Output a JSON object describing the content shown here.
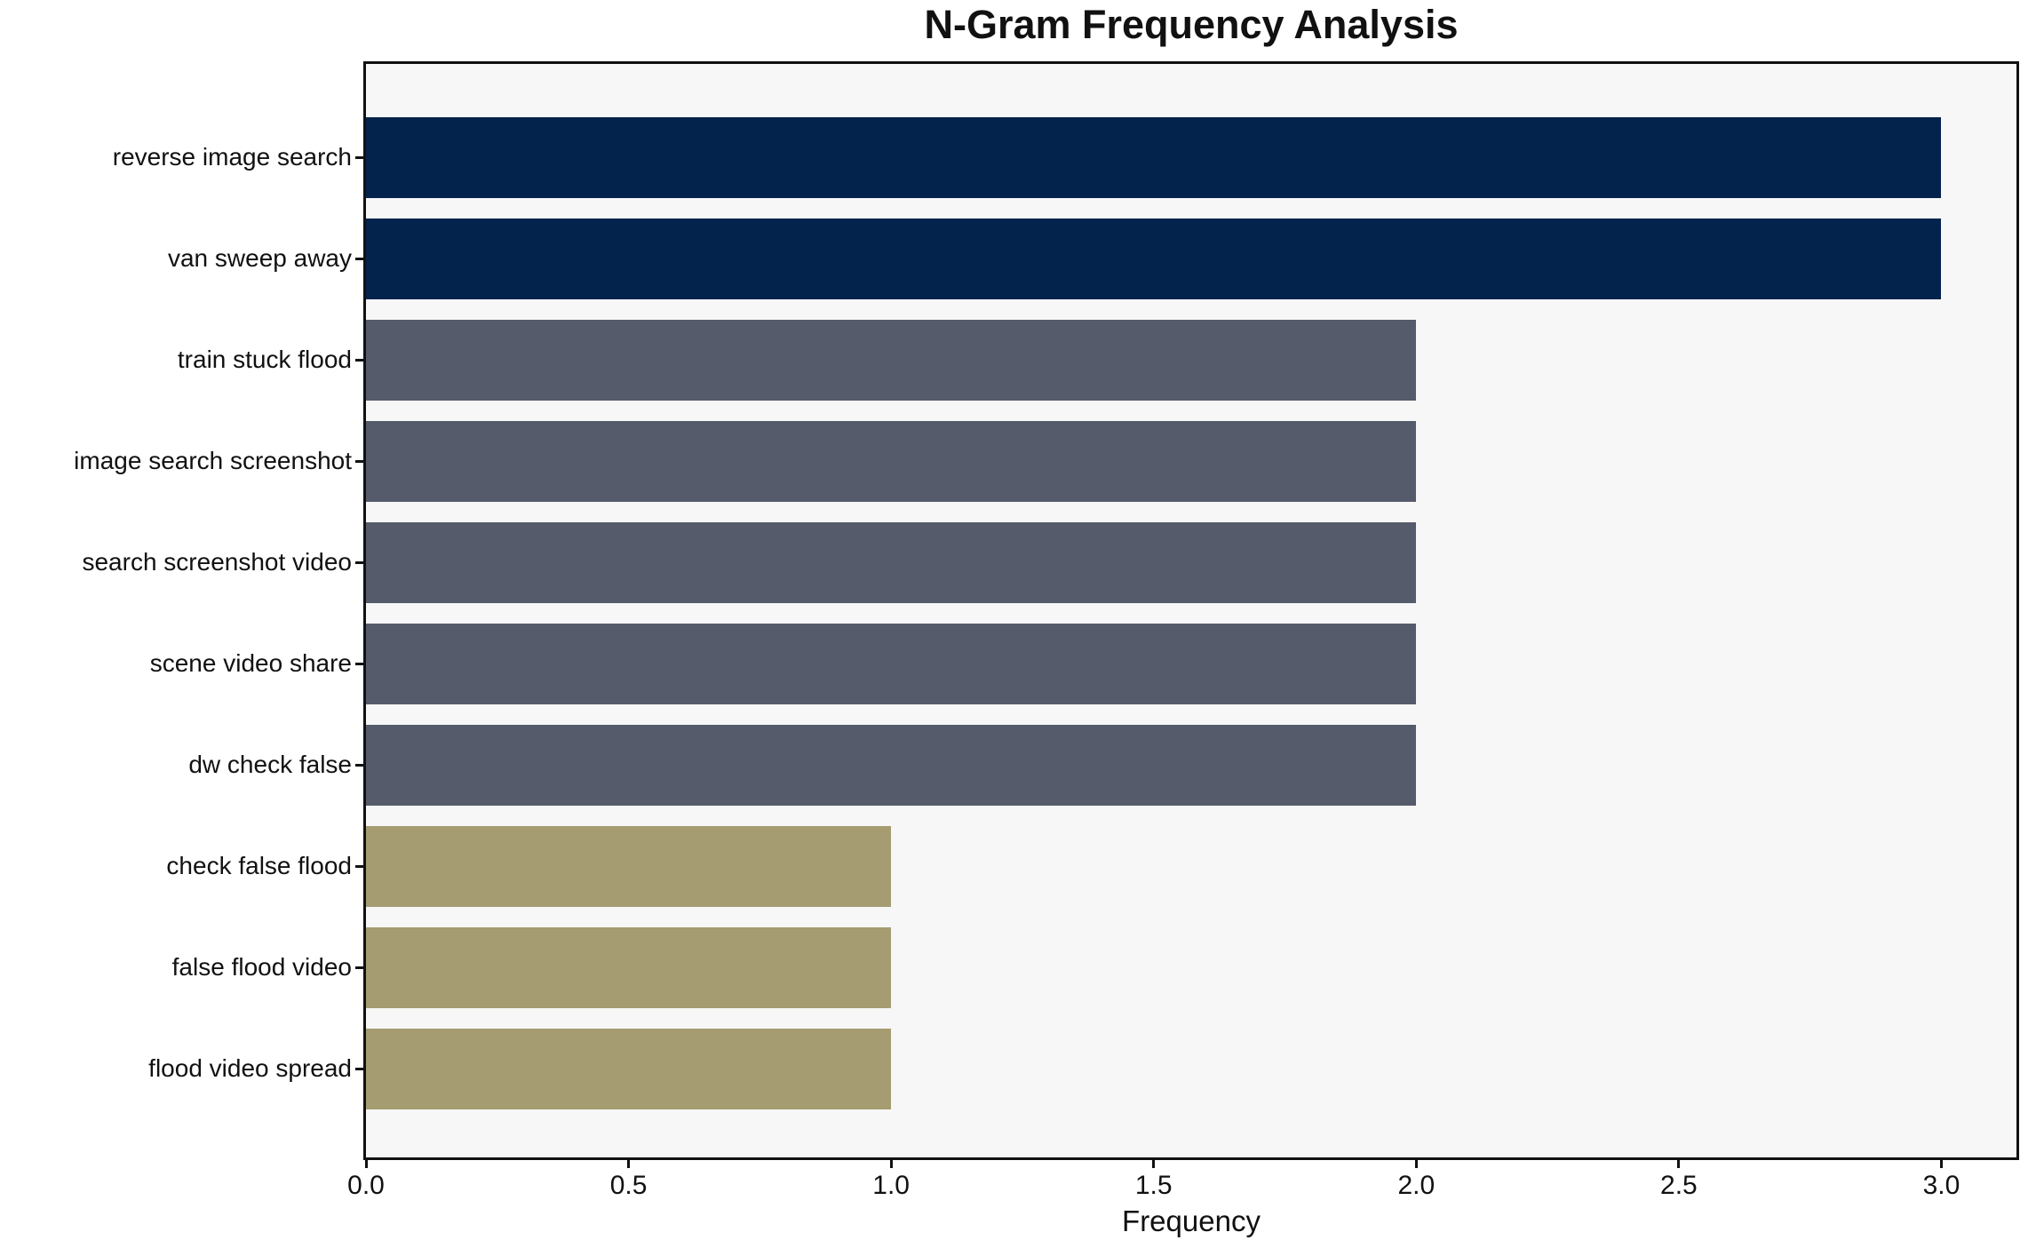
{
  "chart_data": {
    "type": "bar",
    "orientation": "horizontal",
    "title": "N-Gram Frequency Analysis",
    "xlabel": "Frequency",
    "ylabel": "",
    "categories": [
      "reverse image search",
      "van sweep away",
      "train stuck flood",
      "image search screenshot",
      "search screenshot video",
      "scene video share",
      "dw check false",
      "check false flood",
      "false flood video",
      "flood video spread"
    ],
    "values": [
      3,
      3,
      2,
      2,
      2,
      2,
      2,
      1,
      1,
      1
    ],
    "bar_colors": [
      "#03234d",
      "#03234d",
      "#565b6b",
      "#565b6b",
      "#565b6b",
      "#565b6b",
      "#565b6b",
      "#a59c71",
      "#a59c71",
      "#a59c71"
    ],
    "color_by_value": {
      "3": "#03234d",
      "2": "#565b6b",
      "1": "#a59c71"
    },
    "xlim": [
      0,
      3.143
    ],
    "xticks": [
      {
        "value": 0.0,
        "label": "0.0"
      },
      {
        "value": 0.5,
        "label": "0.5"
      },
      {
        "value": 1.0,
        "label": "1.0"
      },
      {
        "value": 1.5,
        "label": "1.5"
      },
      {
        "value": 2.0,
        "label": "2.0"
      },
      {
        "value": 2.5,
        "label": "2.5"
      },
      {
        "value": 3.0,
        "label": "3.0"
      }
    ],
    "grid": false,
    "legend": "none",
    "plot_background": "#f7f7f7",
    "figure_background": "#ffffff",
    "frame_color": "#111111",
    "text_color": "#111111"
  }
}
